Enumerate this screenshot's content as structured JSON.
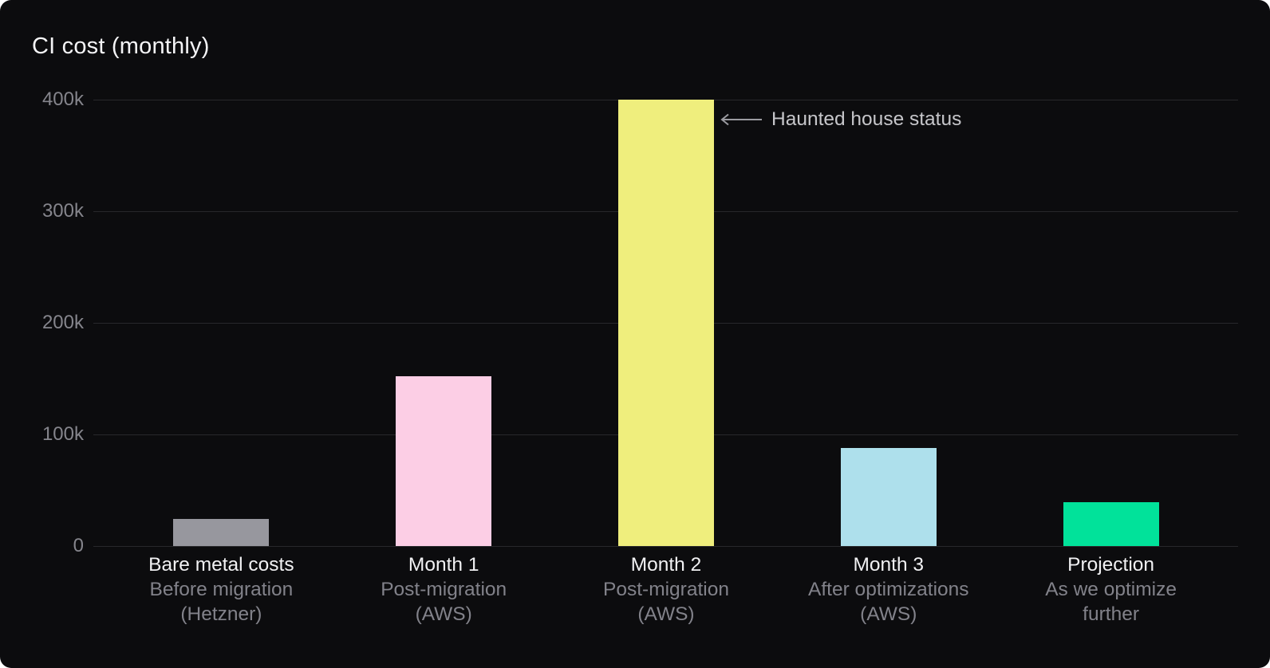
{
  "chart_data": {
    "type": "bar",
    "title": "CI cost (monthly)",
    "xlabel": "",
    "ylabel": "",
    "ymax": 400000,
    "grid": true,
    "legend": false,
    "yticks": [
      {
        "label": "400k",
        "value": 400000
      },
      {
        "label": "300k",
        "value": 300000
      },
      {
        "label": "200k",
        "value": 200000
      },
      {
        "label": "100k",
        "value": 100000
      },
      {
        "label": "0",
        "value": 0
      }
    ],
    "bars": [
      {
        "label": "Bare metal costs",
        "sublines": [
          "Before migration",
          "(Hetzner)"
        ],
        "value": 24000,
        "color": "#97979e"
      },
      {
        "label": "Month 1",
        "sublines": [
          "Post-migration",
          "(AWS)"
        ],
        "value": 152000,
        "color": "#fccee5"
      },
      {
        "label": "Month 2",
        "sublines": [
          "Post-migration",
          "(AWS)"
        ],
        "value": 400000,
        "color": "#efee7d"
      },
      {
        "label": "Month 3",
        "sublines": [
          "After optimizations",
          "(AWS)"
        ],
        "value": 88000,
        "color": "#aee0ec"
      },
      {
        "label": "Projection",
        "sublines": [
          "As we optimize",
          "further"
        ],
        "value": 39000,
        "color": "#01e29a"
      }
    ],
    "annotation": {
      "text": "Haunted house status",
      "arrow": "left-arrow",
      "target": "Month 2",
      "arrow_color": "#9b9ba1"
    }
  }
}
